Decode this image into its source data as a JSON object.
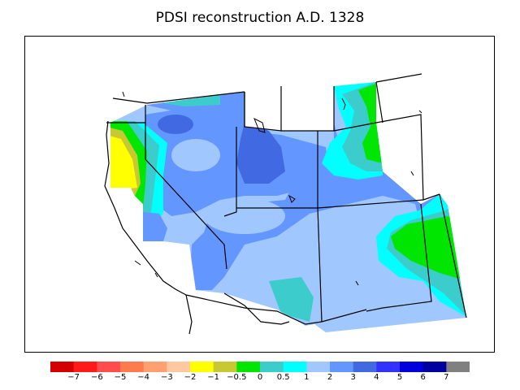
{
  "title": "PDSI reconstruction A.D. 1328",
  "legend": {
    "colors": [
      "#d40000",
      "#ff1a1a",
      "#ff4d4d",
      "#ff7a4d",
      "#ffa070",
      "#ffc8a0",
      "#ffff00",
      "#c8c832",
      "#00e600",
      "#3dcccc",
      "#00ffff",
      "#a0c8ff",
      "#6496ff",
      "#4169e1",
      "#3232ff",
      "#0000dc",
      "#0000a0",
      "#808080"
    ],
    "labels": [
      "−7",
      "−6",
      "−5",
      "−4",
      "−3",
      "−2",
      "−1",
      "−0.5",
      "0",
      "0.5",
      "1",
      "2",
      "3",
      "4",
      "5",
      "6",
      "7"
    ]
  },
  "map": {
    "region": "western United States",
    "year": "A.D. 1328",
    "dominant_values": "PDSI 1 to 3 across most of the region",
    "dry_area": "northern California coast, PDSI about −1 to −2",
    "wet_area": "central Utah, PDSI about 3"
  }
}
